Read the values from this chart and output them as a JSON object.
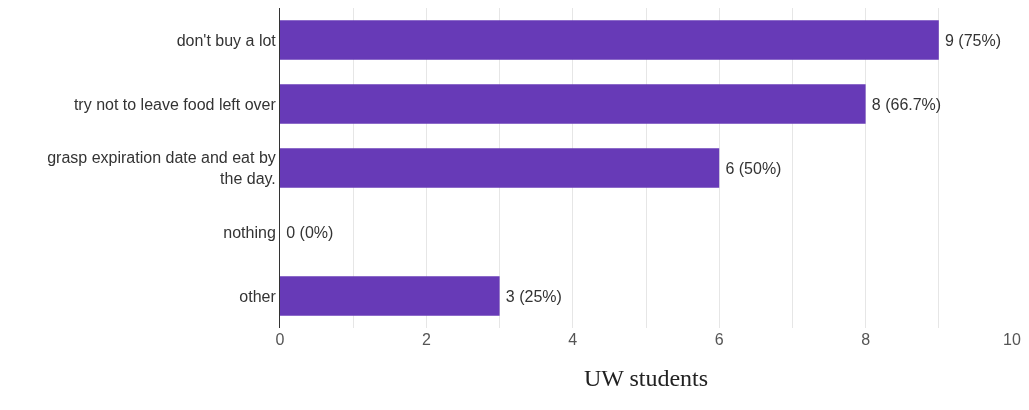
{
  "chart_data": {
    "type": "bar",
    "orientation": "horizontal",
    "xlabel": "UW students",
    "categories": [
      "don't buy a lot",
      "try not to leave food left over",
      "grasp expiration date and eat by the day.",
      "nothing",
      "other"
    ],
    "values": [
      9,
      8,
      6,
      0,
      3
    ],
    "value_labels": [
      "9 (75%)",
      "8 (66.7%)",
      "6 (50%)",
      "0 (0%)",
      "3 (25%)"
    ],
    "color": "#673ab7",
    "xlim": [
      0,
      10
    ],
    "xticks": [
      0,
      {
        "value": 1,
        "label": null
      },
      2,
      {
        "value": 3,
        "label": null
      },
      4,
      {
        "value": 5,
        "label": null
      },
      6,
      {
        "value": 7,
        "label": null
      },
      8,
      {
        "value": 9,
        "label": null
      },
      10
    ],
    "grid": "x"
  }
}
